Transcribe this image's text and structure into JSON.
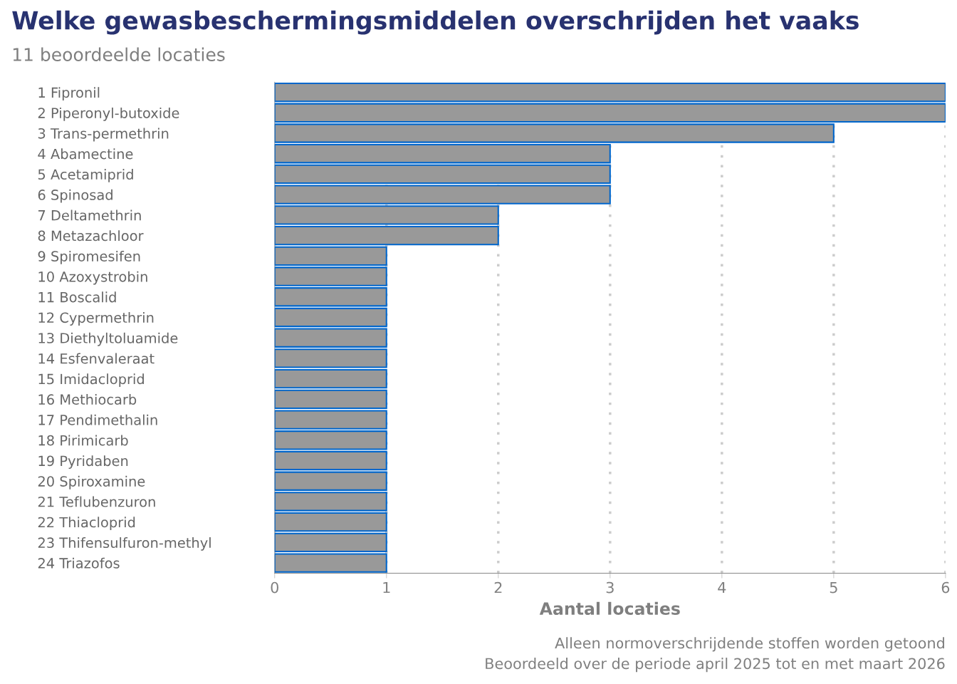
{
  "chart_data": {
    "type": "bar",
    "orientation": "horizontal",
    "title": "Welke gewasbeschermingsmiddelen overschrijden het vaaks",
    "subtitle": "11 beoordeelde locaties",
    "xlabel": "Aantal locaties",
    "annotations": [
      "Alleen normoverschrijdende stoffen worden getoond",
      "Beoordeeld over de periode april 2025 tot en met maart 2026"
    ],
    "categories": [
      "1 Fipronil",
      "2 Piperonyl-butoxide",
      "3 Trans-permethrin",
      "4 Abamectine",
      "5 Acetamiprid",
      "6 Spinosad",
      "7 Deltamethrin",
      "8 Metazachloor",
      "9 Spiromesifen",
      "10 Azoxystrobin",
      "11 Boscalid",
      "12 Cypermethrin",
      "13 Diethyltoluamide",
      "14 Esfenvaleraat",
      "15 Imidacloprid",
      "16 Methiocarb",
      "17 Pendimethalin",
      "18 Pirimicarb",
      "19 Pyridaben",
      "20 Spiroxamine",
      "21 Teflubenzuron",
      "22 Thiacloprid",
      "23 Thifensulfuron-methyl",
      "24 Triazofos"
    ],
    "values": [
      6,
      6,
      5,
      3,
      3,
      3,
      2,
      2,
      1,
      1,
      1,
      1,
      1,
      1,
      1,
      1,
      1,
      1,
      1,
      1,
      1,
      1,
      1,
      1
    ],
    "color": "#999999",
    "xlim": [
      0,
      6
    ],
    "xticks": [
      0,
      1,
      2,
      3,
      4,
      5,
      6
    ],
    "grid": "x",
    "legend": false
  }
}
